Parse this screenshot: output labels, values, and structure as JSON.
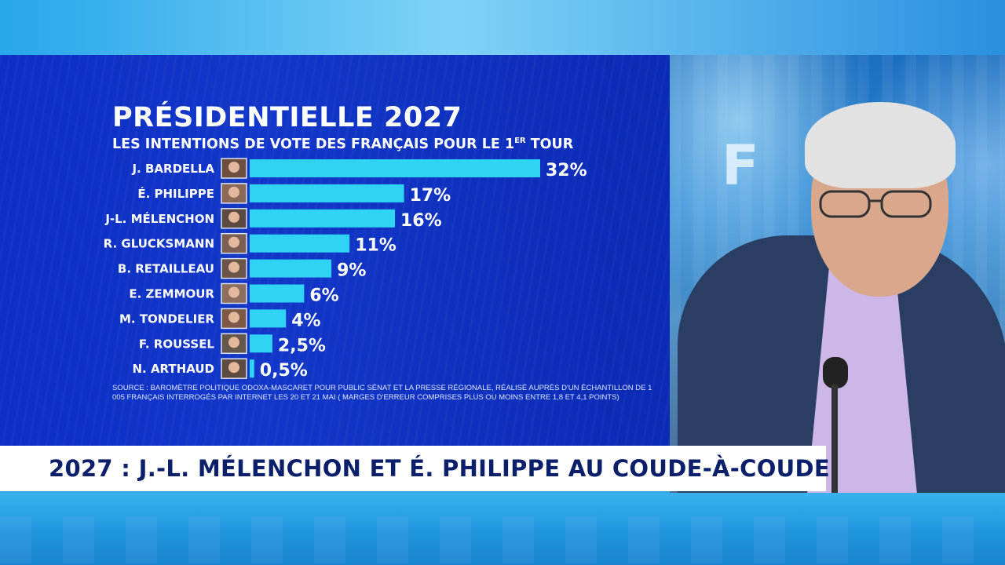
{
  "ticker": {
    "headline": "2027 : J.-L. MÉLENCHON ET É. PHILIPPE AU COUDE-À-COUDE"
  },
  "colors": {
    "panel_background": "#0d2fc4",
    "bar": "#2fd4f5",
    "ticker_text": "#0b1f6b"
  },
  "chart_data": {
    "type": "bar",
    "orientation": "horizontal",
    "title": "PRÉSIDENTIELLE 2027",
    "subtitle_main": "LES INTENTIONS DE VOTE DES FRANÇAIS POUR LE 1",
    "subtitle_sup": "ER",
    "subtitle_end": " TOUR",
    "categories": [
      "J. BARDELLA",
      "É. PHILIPPE",
      "J-L. MÉLENCHON",
      "R. GLUCKSMANN",
      "B. RETAILLEAU",
      "E. ZEMMOUR",
      "M. TONDELIER",
      "F. ROUSSEL",
      "N. ARTHAUD"
    ],
    "values": [
      32,
      17,
      16,
      11,
      9,
      6,
      4,
      2.5,
      0.5
    ],
    "value_labels": [
      "32%",
      "17%",
      "16%",
      "11%",
      "9%",
      "6%",
      "4%",
      "2,5%",
      "0,5%"
    ],
    "xlim": [
      0,
      32
    ],
    "grid": false,
    "legend": "none",
    "source": "SOURCE : BAROMÈTRE POLITIQUE ODOXA-MASCARET POUR PUBLIC SÉNAT ET LA PRESSE RÉGIONALE, RÉALISÉ AUPRÈS D'UN ÉCHANTILLON DE 1 005 FRANÇAIS INTERROGÉS PAR INTERNET LES 20 ET 21 MAI ( MARGES D'ERREUR COMPRISES PLUS OU MOINS ENTRE 1,8 ET 4,1 POINTS)"
  }
}
